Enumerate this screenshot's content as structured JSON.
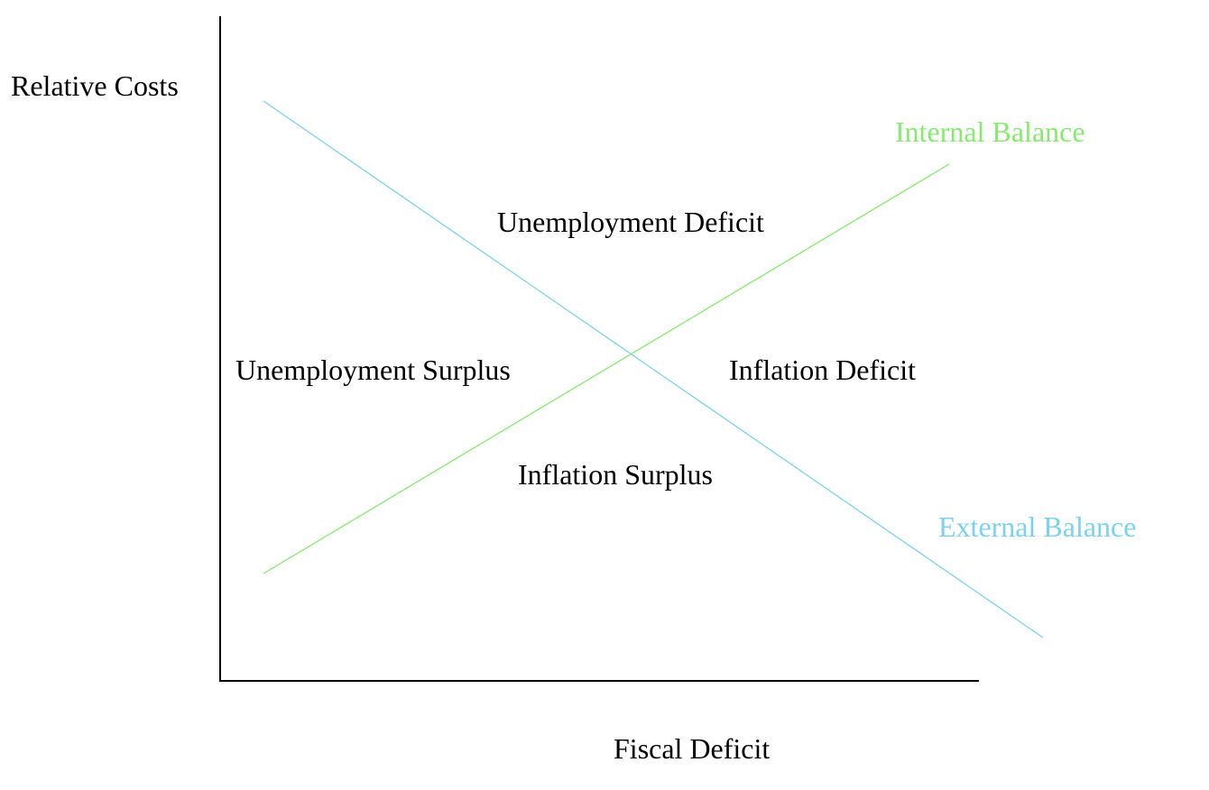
{
  "axes": {
    "y_label": "Relative Costs",
    "x_label": "Fiscal Deficit"
  },
  "curves": {
    "internal_balance": {
      "label": "Internal Balance",
      "color": "#84ec6b"
    },
    "external_balance": {
      "label": "External Balance",
      "color": "#79d3f0"
    }
  },
  "regions": {
    "top": "Unemployment Deficit",
    "left": "Unemployment Surplus",
    "right": "Inflation Deficit",
    "bottom": "Inflation Surplus"
  },
  "colors": {
    "axis": "#000000",
    "text": "#000000"
  }
}
